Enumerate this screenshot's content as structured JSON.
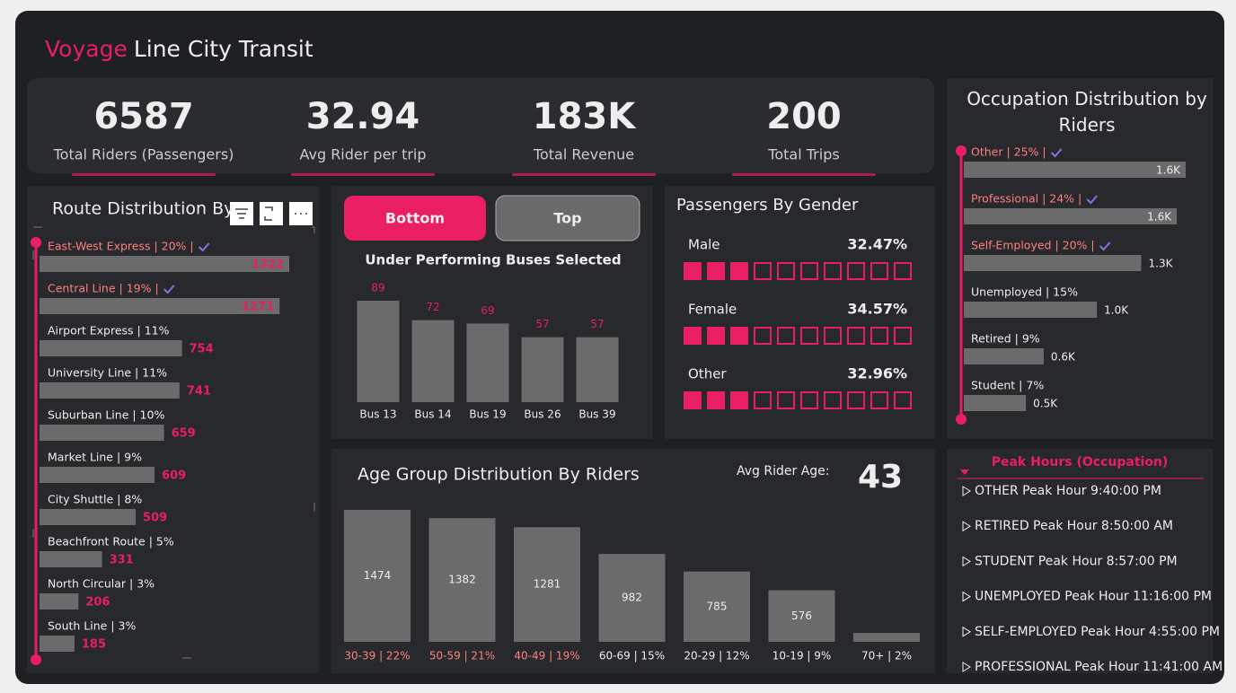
{
  "header": {
    "title_accent": "Voyage",
    "title_rest": "Line City Transit"
  },
  "kpis": [
    {
      "value": 6587,
      "label": "Total Riders (Passengers)"
    },
    {
      "value": 32.94,
      "label": "Avg Rider per trip"
    },
    {
      "value": "183K",
      "label": "Total Revenue"
    },
    {
      "value": 200,
      "label": "Total Trips"
    }
  ],
  "chart_data": [
    {
      "type": "hbar",
      "title": "Route Distribution By",
      "categories": [
        "East-West Express | 20% |",
        "Central Line | 19% |",
        "Airport Express | 11%",
        "University Line | 11%",
        "Suburban Line | 10%",
        "Market Line | 9%",
        "City Shuttle | 8%",
        "Beachfront Route | 5%",
        "North Circular | 3%",
        "South Line | 3%"
      ],
      "values": [
        1322,
        1271,
        754,
        741,
        659,
        609,
        509,
        331,
        206,
        185
      ],
      "selected": [
        true,
        true,
        false,
        false,
        false,
        false,
        false,
        false,
        false,
        false
      ],
      "xlim": [
        0,
        1322
      ],
      "color": "#6b6b6b"
    },
    {
      "type": "bar",
      "title": "Under Performing Buses Selected",
      "buttons": [
        "Bottom",
        "Top"
      ],
      "categories": [
        "Bus 13",
        "Bus 14",
        "Bus 19",
        "Bus 26",
        "Bus 39"
      ],
      "values": [
        89,
        72,
        69,
        57,
        57
      ],
      "ylim": [
        0,
        89
      ],
      "color": "#6b6b6b"
    },
    {
      "type": "waffle",
      "title": "Passengers By Gender",
      "categories": [
        "Male",
        "Female",
        "Other"
      ],
      "values": [
        32.47,
        34.57,
        32.96
      ],
      "value_labels": [
        "32.47%",
        "34.57%",
        "32.96%"
      ],
      "cell": 10,
      "color": "#e91e63"
    },
    {
      "type": "bar",
      "title": "Age Group Distribution By Riders",
      "avg_label": "Avg Rider Age:",
      "avg_value": 43,
      "categories": [
        "30-39 | 22%",
        "50-59 | 21%",
        "40-49 | 19%",
        "60-69 | 15%",
        "20-29 | 12%",
        "10-19 | 9%",
        "70+ | 2%"
      ],
      "values": [
        1474,
        1382,
        1281,
        982,
        785,
        576,
        100
      ],
      "value_labels": [
        "1474",
        "1382",
        "1281",
        "982",
        "785",
        "576",
        null
      ],
      "selected": [
        true,
        true,
        true,
        false,
        false,
        false,
        false
      ],
      "ylim": [
        0,
        1474
      ],
      "color": "#6b6b6b"
    },
    {
      "type": "hbar",
      "title": "Occupation Distribution by Riders",
      "categories": [
        "Other | 25% |",
        "Professional | 24% |",
        "Self-Employed | 20% |",
        "Unemployed | 15%",
        "Retired | 9%",
        "Student | 7%"
      ],
      "values": [
        1647,
        1581,
        1317,
        988,
        593,
        461
      ],
      "value_labels": [
        "1.6K",
        "1.6K",
        "1.3K",
        "1.0K",
        "0.6K",
        "0.5K"
      ],
      "selected": [
        true,
        true,
        true,
        false,
        false,
        false
      ],
      "xlim": [
        0,
        1647
      ],
      "color": "#6b6b6b"
    }
  ],
  "peak_hours": {
    "title": "Peak Hours (Occupation)",
    "items": [
      "OTHER Peak Hour 9:40:00 PM",
      "RETIRED Peak Hour 8:50:00 AM",
      "STUDENT Peak Hour 8:57:00 PM",
      "UNEMPLOYED Peak Hour 11:16:00 PM",
      "SELF-EMPLOYED Peak Hour 4:55:00 PM",
      "PROFESSIONAL Peak Hour 11:41:00 AM"
    ]
  }
}
